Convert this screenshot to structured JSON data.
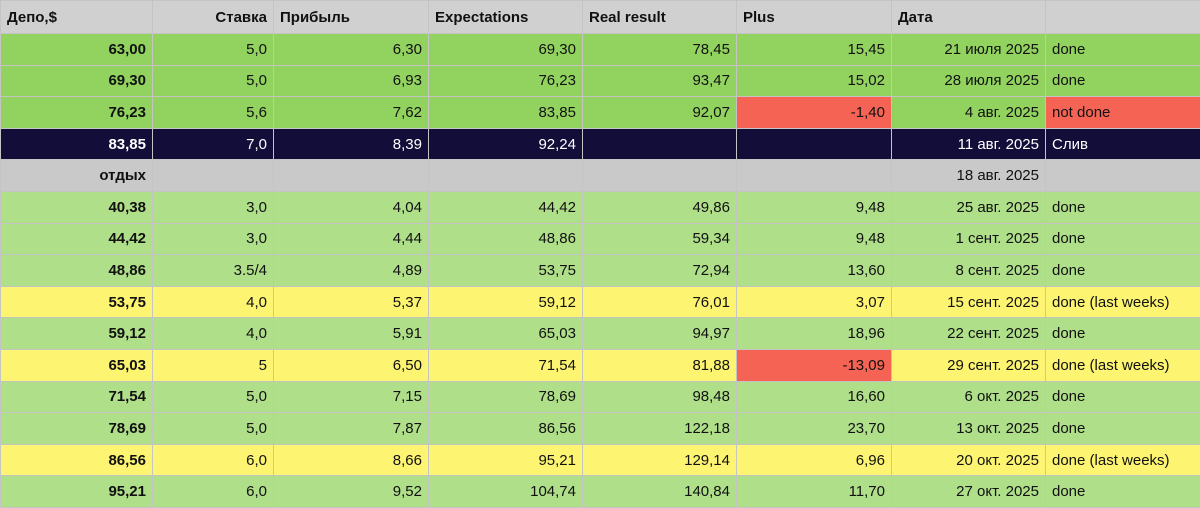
{
  "colors": {
    "header_bg": "#d0d0d0",
    "green_bright": "#92d360",
    "green_light": "#b0df8a",
    "yellow": "#fdf571",
    "dark": "#130d3a",
    "gray": "#c9c9c9",
    "red": "#f56354"
  },
  "headers": [
    "Депо,$",
    "Ставка",
    "Прибыль",
    "Expectations",
    "Real result",
    "Plus",
    "Дата",
    ""
  ],
  "rows": [
    {
      "style": "green-bright",
      "cells": [
        "63,00",
        "5,0",
        "6,30",
        "69,30",
        "78,45",
        "15,45",
        "21 июля 2025",
        "done"
      ],
      "red": []
    },
    {
      "style": "green-bright",
      "cells": [
        "69,30",
        "5,0",
        "6,93",
        "76,23",
        "93,47",
        "15,02",
        "28 июля 2025",
        "done"
      ],
      "red": []
    },
    {
      "style": "green-bright",
      "cells": [
        "76,23",
        "5,6",
        "7,62",
        "83,85",
        "92,07",
        "-1,40",
        "4 авг. 2025",
        "not done"
      ],
      "red": [
        5,
        7
      ]
    },
    {
      "style": "dark",
      "cells": [
        "83,85",
        "7,0",
        "8,39",
        "92,24",
        "",
        "",
        "11 авг. 2025",
        "Слив"
      ],
      "red": []
    },
    {
      "style": "gray",
      "cells": [
        "отдых",
        "",
        "",
        "",
        "",
        "",
        "18 авг. 2025",
        ""
      ],
      "red": []
    },
    {
      "style": "green-light",
      "cells": [
        "40,38",
        "3,0",
        "4,04",
        "44,42",
        "49,86",
        "9,48",
        "25 авг. 2025",
        "done"
      ],
      "red": []
    },
    {
      "style": "green-light",
      "cells": [
        "44,42",
        "3,0",
        "4,44",
        "48,86",
        "59,34",
        "9,48",
        "1 сент. 2025",
        "done"
      ],
      "red": []
    },
    {
      "style": "green-light",
      "cells": [
        "48,86",
        "3.5/4",
        "4,89",
        "53,75",
        "72,94",
        "13,60",
        "8 сент. 2025",
        "done"
      ],
      "red": []
    },
    {
      "style": "yellow",
      "cells": [
        "53,75",
        "4,0",
        "5,37",
        "59,12",
        "76,01",
        "3,07",
        "15 сент. 2025",
        "done (last weeks)"
      ],
      "red": []
    },
    {
      "style": "green-light",
      "cells": [
        "59,12",
        "4,0",
        "5,91",
        "65,03",
        "94,97",
        "18,96",
        "22 сент. 2025",
        "done"
      ],
      "red": []
    },
    {
      "style": "yellow",
      "cells": [
        "65,03",
        "5",
        "6,50",
        "71,54",
        "81,88",
        "-13,09",
        "29 сент. 2025",
        "done (last weeks)"
      ],
      "red": [
        5
      ]
    },
    {
      "style": "green-light",
      "cells": [
        "71,54",
        "5,0",
        "7,15",
        "78,69",
        "98,48",
        "16,60",
        "6 окт. 2025",
        "done"
      ],
      "red": []
    },
    {
      "style": "green-light",
      "cells": [
        "78,69",
        "5,0",
        "7,87",
        "86,56",
        "122,18",
        "23,70",
        "13 окт. 2025",
        "done"
      ],
      "red": []
    },
    {
      "style": "yellow",
      "cells": [
        "86,56",
        "6,0",
        "8,66",
        "95,21",
        "129,14",
        "6,96",
        "20 окт. 2025",
        "done (last weeks)"
      ],
      "red": []
    },
    {
      "style": "green-light",
      "cells": [
        "95,21",
        "6,0",
        "9,52",
        "104,74",
        "140,84",
        "11,70",
        "27 окт. 2025",
        "done"
      ],
      "red": []
    }
  ]
}
